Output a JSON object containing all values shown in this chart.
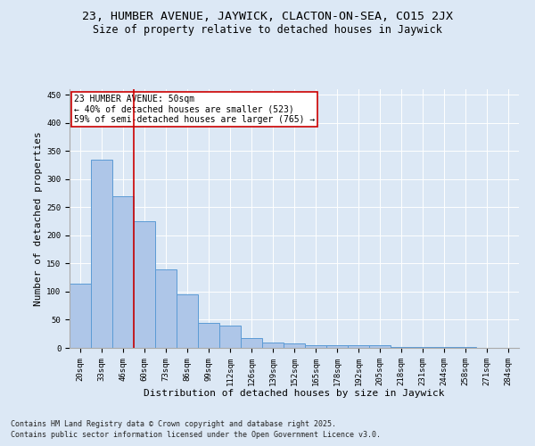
{
  "title_line1": "23, HUMBER AVENUE, JAYWICK, CLACTON-ON-SEA, CO15 2JX",
  "title_line2": "Size of property relative to detached houses in Jaywick",
  "xlabel": "Distribution of detached houses by size in Jaywick",
  "ylabel": "Number of detached properties",
  "categories": [
    "20sqm",
    "33sqm",
    "46sqm",
    "60sqm",
    "73sqm",
    "86sqm",
    "99sqm",
    "112sqm",
    "126sqm",
    "139sqm",
    "152sqm",
    "165sqm",
    "178sqm",
    "192sqm",
    "205sqm",
    "218sqm",
    "231sqm",
    "244sqm",
    "258sqm",
    "271sqm",
    "284sqm"
  ],
  "values": [
    115,
    335,
    270,
    225,
    140,
    95,
    45,
    40,
    18,
    10,
    8,
    5,
    5,
    5,
    4,
    1,
    1,
    1,
    1,
    0,
    0
  ],
  "bar_color": "#aec6e8",
  "bar_edge_color": "#5b9bd5",
  "vline_index": 2,
  "vline_color": "#cc0000",
  "annotation_text": "23 HUMBER AVENUE: 50sqm\n← 40% of detached houses are smaller (523)\n59% of semi-detached houses are larger (765) →",
  "annotation_box_color": "#ffffff",
  "annotation_box_edge": "#cc0000",
  "background_color": "#dce8f5",
  "grid_color": "#ffffff",
  "ylim": [
    0,
    460
  ],
  "yticks": [
    0,
    50,
    100,
    150,
    200,
    250,
    300,
    350,
    400,
    450
  ],
  "footer_line1": "Contains HM Land Registry data © Crown copyright and database right 2025.",
  "footer_line2": "Contains public sector information licensed under the Open Government Licence v3.0.",
  "title_fontsize": 9.5,
  "subtitle_fontsize": 8.5,
  "tick_fontsize": 6.5,
  "label_fontsize": 8,
  "annotation_fontsize": 7,
  "footer_fontsize": 6
}
